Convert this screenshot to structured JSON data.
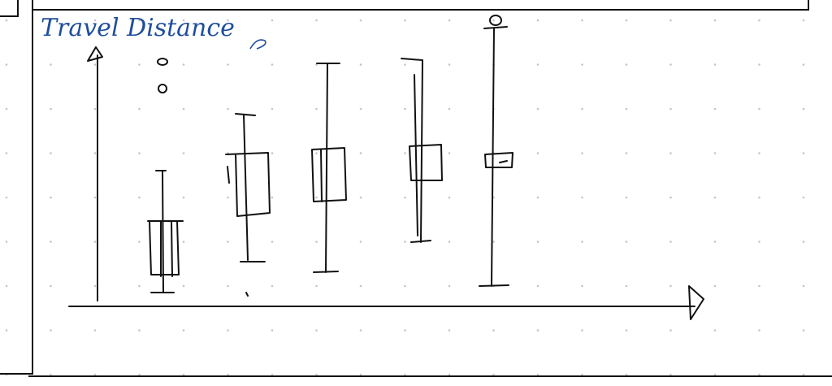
{
  "sketch": {
    "title": "Travel Distance"
  }
}
